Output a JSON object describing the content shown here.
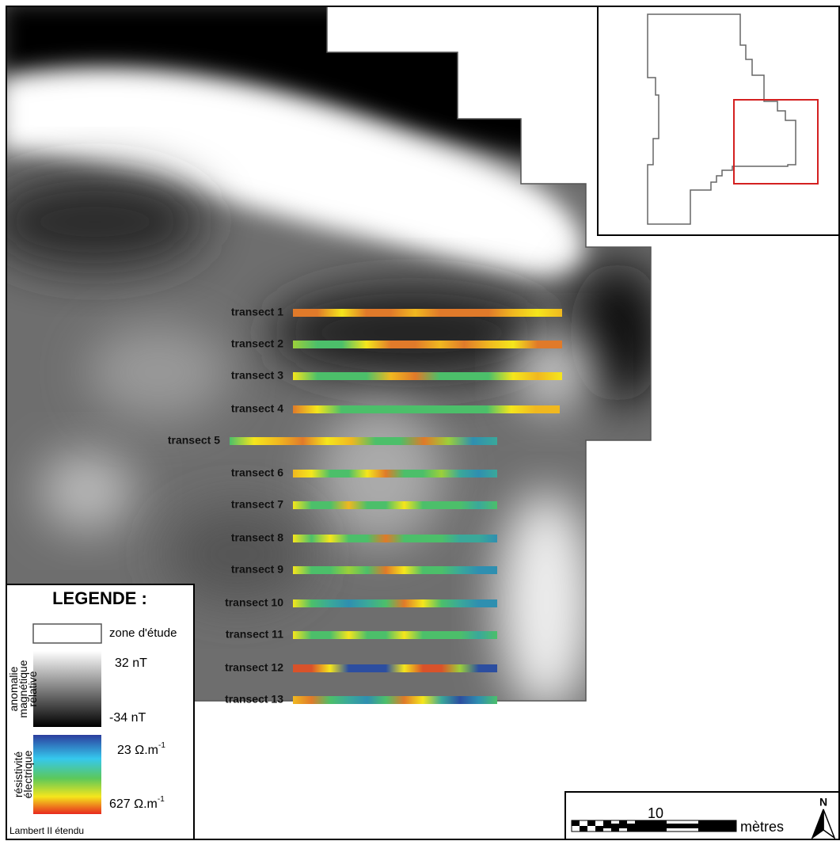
{
  "map": {
    "transects": [
      "transect 1",
      "transect 2",
      "transect 3",
      "transect 4",
      "transect 5",
      "transect 6",
      "transect 7",
      "transect 8",
      "transect 9",
      "transect 10",
      "transect 11",
      "transect 12",
      "transect 13"
    ],
    "legend": {
      "title": "LEGENDE :",
      "zone": "zone d'étude",
      "magnetic_title": [
        "anomalie",
        "magnétique",
        "relative"
      ],
      "magnetic_max": "32 nT",
      "magnetic_min": "-34 nT",
      "resistivity_title": [
        "résistivité",
        "électrique"
      ],
      "resistivity_min": {
        "text": "23 Ω.m",
        "exponent": "-1"
      },
      "resistivity_max": {
        "text": "627 Ω.m",
        "exponent": "-1"
      },
      "projection": "Lambert II étendu"
    },
    "scale_bar": {
      "label": "10",
      "unit": "mètres"
    },
    "north": "N"
  }
}
